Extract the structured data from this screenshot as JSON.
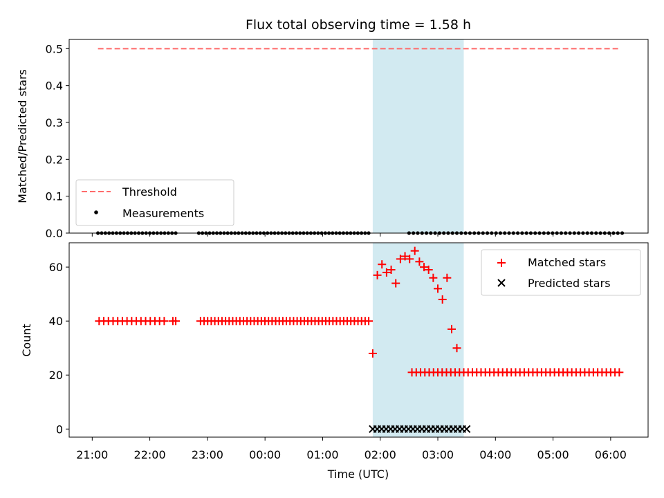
{
  "chart_data": [
    {
      "type": "scatter",
      "title": "Flux total observing time = 1.58 h",
      "ylabel": "Matched/Predicted stars",
      "ylim": [
        0,
        0.525
      ],
      "yticks": [
        0.0,
        0.1,
        0.2,
        0.3,
        0.4,
        0.5
      ],
      "ytick_labels": [
        "0.0",
        "0.1",
        "0.2",
        "0.3",
        "0.4",
        "0.5"
      ],
      "grid": false,
      "legend_position": "lower-left",
      "shaded_interval": {
        "start": 4.87,
        "end": 6.45,
        "color": "#add8e6"
      },
      "series": [
        {
          "name": "Threshold",
          "kind": "dashed-line",
          "color": "#ff6b6b",
          "x": [
            0.1,
            9.15
          ],
          "y": [
            0.5,
            0.5
          ]
        },
        {
          "name": "Measurements",
          "kind": "scatter",
          "marker": "dot",
          "color": "#000000",
          "segments": [
            {
              "start": 0.1,
              "end": 1.45,
              "count": 22
            },
            {
              "start": 1.85,
              "end": 4.8,
              "count": 48
            },
            {
              "start": 5.5,
              "end": 9.2,
              "count": 50
            }
          ],
          "value": 0
        }
      ]
    },
    {
      "type": "scatter",
      "xlabel": "Time (UTC)",
      "ylabel": "Count",
      "ylim": [
        -3,
        69
      ],
      "yticks": [
        0,
        20,
        40,
        60
      ],
      "ytick_labels": [
        "0",
        "20",
        "40",
        "60"
      ],
      "xlim": [
        -0.4,
        9.65
      ],
      "xticks": [
        0,
        1,
        2,
        3,
        4,
        5,
        6,
        7,
        8,
        9
      ],
      "xtick_labels": [
        "21:00",
        "22:00",
        "23:00",
        "00:00",
        "01:00",
        "02:00",
        "03:00",
        "04:00",
        "05:00",
        "06:00"
      ],
      "grid": false,
      "legend_position": "top-right",
      "shaded_interval": {
        "start": 4.87,
        "end": 6.45,
        "color": "#add8e6"
      },
      "series": [
        {
          "name": "Matched stars",
          "marker": "plus",
          "color": "#ff0000",
          "segments": [
            {
              "start": 0.12,
              "end": 1.25,
              "count": 15,
              "value": 40
            },
            {
              "start": 1.4,
              "end": 1.45,
              "count": 2,
              "value": 40
            },
            {
              "start": 1.88,
              "end": 4.8,
              "count": 48,
              "value": 40
            },
            {
              "start": 5.55,
              "end": 9.15,
              "count": 49,
              "value": 21
            }
          ],
          "points": [
            [
              4.87,
              28
            ],
            [
              4.95,
              57
            ],
            [
              5.03,
              61
            ],
            [
              5.11,
              58
            ],
            [
              5.19,
              59
            ],
            [
              5.27,
              54
            ],
            [
              5.35,
              63
            ],
            [
              5.43,
              64
            ],
            [
              5.51,
              63
            ],
            [
              5.6,
              66
            ],
            [
              5.68,
              62
            ],
            [
              5.76,
              60
            ],
            [
              5.84,
              59
            ],
            [
              5.92,
              56
            ],
            [
              6.0,
              52
            ],
            [
              6.08,
              48
            ],
            [
              6.16,
              56
            ],
            [
              6.24,
              37
            ],
            [
              6.33,
              30
            ]
          ]
        },
        {
          "name": "Predicted stars",
          "marker": "x",
          "color": "#000000",
          "segments": [
            {
              "start": 4.87,
              "end": 6.5,
              "count": 22,
              "value": 0
            }
          ]
        }
      ]
    }
  ]
}
